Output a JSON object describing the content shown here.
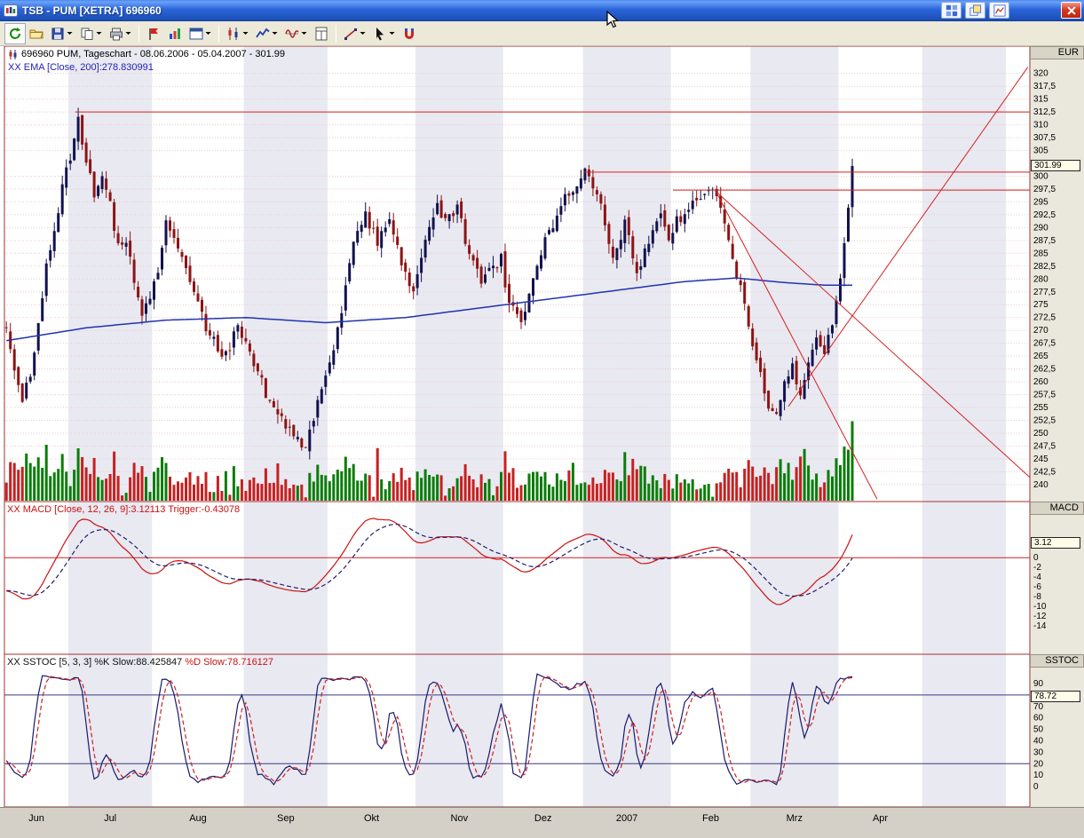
{
  "window": {
    "title": "TSB - PUM [XETRA] 696960",
    "titlebar_buttons": [
      {
        "name": "tile-windows-button",
        "icon": "tile-icon"
      },
      {
        "name": "cascade-windows-button",
        "icon": "cascade-icon"
      },
      {
        "name": "chart-window-button",
        "icon": "chartwin-icon"
      },
      {
        "name": "close-button",
        "icon": "close-icon"
      }
    ]
  },
  "toolbar": {
    "items": [
      {
        "name": "update-button",
        "icon": "refresh-icon"
      },
      {
        "name": "open-button",
        "icon": "open-folder-icon"
      },
      {
        "name": "save-button",
        "icon": "save-icon",
        "dropdown": true
      },
      {
        "name": "copy-button",
        "icon": "copy-icon",
        "dropdown": true
      },
      {
        "name": "print-button",
        "icon": "print-icon",
        "dropdown": true
      },
      {
        "sep": true
      },
      {
        "name": "flag-button",
        "icon": "red-flag-icon"
      },
      {
        "name": "watchlist-button",
        "icon": "chart-flag-icon"
      },
      {
        "name": "new-window-button",
        "icon": "window-icon",
        "dropdown": true
      },
      {
        "sep": true
      },
      {
        "name": "chart-type-button",
        "icon": "candlestick-icon",
        "dropdown": true
      },
      {
        "name": "indicator-button",
        "icon": "indicator-icon",
        "dropdown": true
      },
      {
        "name": "oscillator-button",
        "icon": "oscillator-icon",
        "dropdown": true
      },
      {
        "name": "template-button",
        "icon": "template-icon"
      },
      {
        "sep": true
      },
      {
        "name": "draw-line-button",
        "icon": "trendline-icon",
        "dropdown": true
      },
      {
        "name": "pointer-button",
        "icon": "pointer-icon",
        "dropdown": true
      },
      {
        "name": "magnet-button",
        "icon": "magnet-icon"
      }
    ]
  },
  "chart": {
    "header": {
      "symbol_line": "696960  PUM, Tageschart - 08.06.2006 - 05.04.2007 - 301.99",
      "ema_line": "XX EMA [Close, 200]:278.830991"
    },
    "price_axis": {
      "unit": "EUR",
      "current_price": "301.99",
      "ticks": [
        "320",
        "317,5",
        "315",
        "312,5",
        "310",
        "307,5",
        "305",
        "300",
        "297,5",
        "295",
        "292,5",
        "290",
        "287,5",
        "285",
        "282,5",
        "280",
        "277,5",
        "275",
        "272,5",
        "270",
        "267,5",
        "265",
        "262,5",
        "260",
        "257,5",
        "255",
        "252,5",
        "250",
        "247,5",
        "245",
        "242,5",
        "240"
      ]
    },
    "macd": {
      "header": "XX MACD [Close, 12, 26, 9]:3.12113 Trigger:-0.43078",
      "axis_label": "MACD",
      "current": "3.12",
      "ticks": [
        "0",
        "-2",
        "-4",
        "-6",
        "-8",
        "-10",
        "-12",
        "-14"
      ]
    },
    "sstoc": {
      "header_black": "XX SSTOC [5, 3, 3] %K Slow:88.425847",
      "header_red": "%D Slow:78.716127",
      "axis_label": "SSTOC",
      "current": "78.72",
      "ticks": [
        "90",
        "80",
        "70",
        "60",
        "50",
        "40",
        "30",
        "20",
        "10",
        "0"
      ]
    },
    "time_axis": {
      "labels": [
        "Jun",
        "Jul",
        "Aug",
        "Sep",
        "Okt",
        "Nov",
        "Dez",
        "2007",
        "Feb",
        "Mrz",
        "Apr"
      ]
    }
  },
  "chart_data": {
    "type": "candlestick",
    "title": "696960 PUM, Tageschart",
    "date_range": "08.06.2006 - 05.04.2007",
    "last_price": 301.99,
    "series": [
      {
        "name": "PUM daily OHLC",
        "type": "candlestick"
      },
      {
        "name": "EMA [Close, 200]",
        "type": "line",
        "last": 278.830991
      },
      {
        "name": "Volume",
        "type": "bar"
      },
      {
        "name": "MACD [Close, 12, 26, 9]",
        "type": "line",
        "last": 3.12113
      },
      {
        "name": "MACD Trigger",
        "type": "line",
        "last": -0.43078
      },
      {
        "name": "SSTOC [5, 3, 3] %K Slow",
        "type": "line",
        "last": 88.425847
      },
      {
        "name": "SSTOC %D Slow",
        "type": "line",
        "last": 78.716127
      }
    ],
    "price_axis_range": [
      240,
      320
    ],
    "price_tick_step": 2.5,
    "macd_visible_ticks": [
      0,
      -2,
      -4,
      -6,
      -8,
      -10,
      -12,
      -14
    ],
    "sstoc_axis_range": [
      0,
      90
    ],
    "sstoc_reference_lines": [
      80,
      20
    ],
    "months": [
      "Jun",
      "Jul",
      "Aug",
      "Sep",
      "Okt",
      "Nov",
      "Dez",
      "2007",
      "Feb",
      "Mrz",
      "Apr"
    ],
    "month_start_day_index": [
      0,
      16,
      37,
      60,
      81,
      103,
      125,
      145,
      167,
      187,
      209
    ],
    "total_days": 213,
    "plot_days": 257,
    "pre_history_anchors": [
      [
        -40,
        312
      ],
      [
        -32,
        304
      ],
      [
        -24,
        296
      ],
      [
        -16,
        286
      ],
      [
        -8,
        277
      ],
      [
        -3,
        272
      ]
    ],
    "close_path_anchors": [
      [
        0,
        271
      ],
      [
        2,
        263
      ],
      [
        4,
        257
      ],
      [
        6,
        262
      ],
      [
        8,
        271
      ],
      [
        10,
        282
      ],
      [
        13,
        294
      ],
      [
        16,
        304
      ],
      [
        18,
        311
      ],
      [
        20,
        303
      ],
      [
        22,
        296
      ],
      [
        24,
        301
      ],
      [
        26,
        294
      ],
      [
        28,
        286
      ],
      [
        30,
        288
      ],
      [
        32,
        279
      ],
      [
        34,
        272
      ],
      [
        36,
        277
      ],
      [
        38,
        282
      ],
      [
        40,
        291
      ],
      [
        42,
        288
      ],
      [
        44,
        284
      ],
      [
        46,
        280
      ],
      [
        48,
        276
      ],
      [
        50,
        271
      ],
      [
        52,
        268
      ],
      [
        54,
        265
      ],
      [
        56,
        267
      ],
      [
        58,
        271
      ],
      [
        60,
        268
      ],
      [
        62,
        262
      ],
      [
        64,
        260
      ],
      [
        66,
        256
      ],
      [
        68,
        254
      ],
      [
        70,
        251
      ],
      [
        72,
        249
      ],
      [
        75,
        248
      ],
      [
        78,
        256
      ],
      [
        81,
        263
      ],
      [
        84,
        274
      ],
      [
        87,
        287
      ],
      [
        90,
        293
      ],
      [
        93,
        287
      ],
      [
        96,
        291
      ],
      [
        99,
        283
      ],
      [
        102,
        277
      ],
      [
        105,
        288
      ],
      [
        108,
        295
      ],
      [
        110,
        291
      ],
      [
        113,
        294
      ],
      [
        116,
        285
      ],
      [
        119,
        279
      ],
      [
        122,
        282
      ],
      [
        124,
        284
      ],
      [
        126,
        275
      ],
      [
        129,
        271
      ],
      [
        132,
        279
      ],
      [
        135,
        287
      ],
      [
        138,
        293
      ],
      [
        141,
        297
      ],
      [
        144,
        300
      ],
      [
        146,
        301
      ],
      [
        149,
        294
      ],
      [
        152,
        284
      ],
      [
        155,
        291
      ],
      [
        158,
        281
      ],
      [
        161,
        287
      ],
      [
        164,
        292
      ],
      [
        166,
        288
      ],
      [
        168,
        291
      ],
      [
        171,
        294
      ],
      [
        174,
        296
      ],
      [
        177,
        297
      ],
      [
        179,
        293
      ],
      [
        181,
        288
      ],
      [
        183,
        281
      ],
      [
        185,
        275
      ],
      [
        187,
        268
      ],
      [
        189,
        261
      ],
      [
        191,
        255
      ],
      [
        193,
        253
      ],
      [
        195,
        259
      ],
      [
        197,
        263
      ],
      [
        199,
        258
      ],
      [
        201,
        264
      ],
      [
        203,
        269
      ],
      [
        205,
        266
      ],
      [
        207,
        272
      ],
      [
        208,
        276
      ],
      [
        209,
        281
      ],
      [
        210,
        288
      ],
      [
        211,
        294
      ],
      [
        212,
        301
      ]
    ],
    "ema200_path_anchors": [
      [
        0,
        268
      ],
      [
        20,
        270.5
      ],
      [
        40,
        272
      ],
      [
        60,
        272.5
      ],
      [
        80,
        271.5
      ],
      [
        100,
        272.5
      ],
      [
        120,
        274.5
      ],
      [
        140,
        276.5
      ],
      [
        155,
        278
      ],
      [
        170,
        279.5
      ],
      [
        183,
        280.2
      ],
      [
        195,
        279.3
      ],
      [
        205,
        278.8
      ],
      [
        212,
        278.8
      ]
    ],
    "trendlines": [
      {
        "kind": "horizontal",
        "price": 312.5,
        "from_frac": 0.069,
        "to_frac": 1.0
      },
      {
        "kind": "horizontal",
        "price": 300.8,
        "from_frac": 0.565,
        "to_frac": 1.0
      },
      {
        "kind": "horizontal",
        "price": 297.3,
        "from_frac": 0.652,
        "to_frac": 1.0
      },
      {
        "kind": "segment",
        "p1": [
          0.695,
          296.6
        ],
        "p2": [
          0.851,
          237.2
        ]
      },
      {
        "kind": "segment",
        "p1": [
          0.693,
          297.2
        ],
        "p2": [
          1.0,
          241.4
        ]
      },
      {
        "kind": "segment",
        "p1": [
          0.7645,
          255.2
        ],
        "p2": [
          0.998,
          321.2
        ]
      }
    ]
  }
}
